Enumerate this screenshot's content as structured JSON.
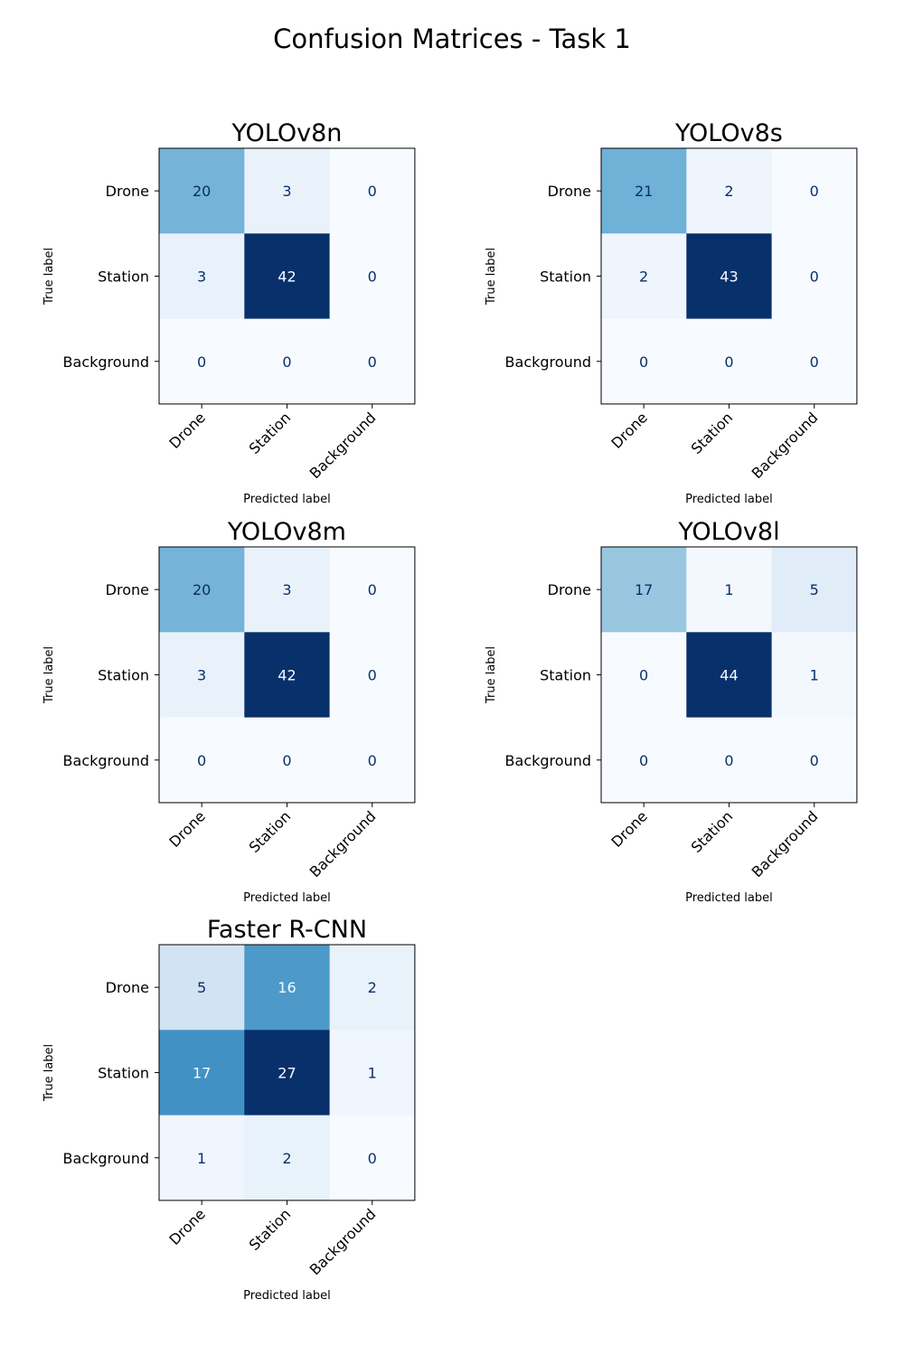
{
  "figure": {
    "title": "Confusion Matrices - Task 1"
  },
  "colormap": {
    "name": "Blues",
    "low": "#f7fbff",
    "high": "#08306b",
    "text_dark": "#08306b",
    "text_light": "#f7fbff"
  },
  "chart_data": [
    {
      "type": "heatmap",
      "title": "YOLOv8n",
      "xlabel": "Predicted label",
      "ylabel": "True label",
      "x_categories": [
        "Drone",
        "Station",
        "Background"
      ],
      "y_categories": [
        "Drone",
        "Station",
        "Background"
      ],
      "values": [
        [
          20,
          3,
          0
        ],
        [
          3,
          42,
          0
        ],
        [
          0,
          0,
          0
        ]
      ]
    },
    {
      "type": "heatmap",
      "title": "YOLOv8s",
      "xlabel": "Predicted label",
      "ylabel": "True label",
      "x_categories": [
        "Drone",
        "Station",
        "Background"
      ],
      "y_categories": [
        "Drone",
        "Station",
        "Background"
      ],
      "values": [
        [
          21,
          2,
          0
        ],
        [
          2,
          43,
          0
        ],
        [
          0,
          0,
          0
        ]
      ]
    },
    {
      "type": "heatmap",
      "title": "YOLOv8m",
      "xlabel": "Predicted label",
      "ylabel": "True label",
      "x_categories": [
        "Drone",
        "Station",
        "Background"
      ],
      "y_categories": [
        "Drone",
        "Station",
        "Background"
      ],
      "values": [
        [
          20,
          3,
          0
        ],
        [
          3,
          42,
          0
        ],
        [
          0,
          0,
          0
        ]
      ]
    },
    {
      "type": "heatmap",
      "title": "YOLOv8l",
      "xlabel": "Predicted label",
      "ylabel": "True label",
      "x_categories": [
        "Drone",
        "Station",
        "Background"
      ],
      "y_categories": [
        "Drone",
        "Station",
        "Background"
      ],
      "values": [
        [
          17,
          1,
          5
        ],
        [
          0,
          44,
          1
        ],
        [
          0,
          0,
          0
        ]
      ]
    },
    {
      "type": "heatmap",
      "title": "Faster R-CNN",
      "xlabel": "Predicted label",
      "ylabel": "True label",
      "x_categories": [
        "Drone",
        "Station",
        "Background"
      ],
      "y_categories": [
        "Drone",
        "Station",
        "Background"
      ],
      "values": [
        [
          5,
          16,
          2
        ],
        [
          17,
          27,
          1
        ],
        [
          1,
          2,
          0
        ]
      ]
    }
  ]
}
